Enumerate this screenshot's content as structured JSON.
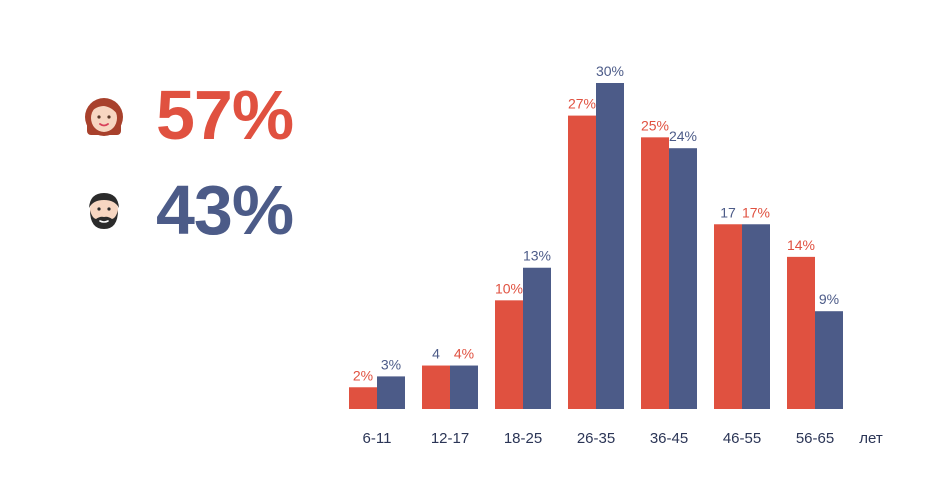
{
  "summary": {
    "female": {
      "percent": "57%",
      "icon": "woman-face-icon",
      "color": "#e05140"
    },
    "male": {
      "percent": "43%",
      "icon": "bearded-man-face-icon",
      "color": "#4c5b88"
    }
  },
  "chart_data": {
    "type": "bar",
    "title": "",
    "xlabel": "лет",
    "ylabel": "",
    "ylim": [
      0,
      30
    ],
    "grid": false,
    "categories": [
      "6-11",
      "12-17",
      "18-25",
      "26-35",
      "36-45",
      "46-55",
      "56-65"
    ],
    "series": [
      {
        "name": "female",
        "color": "#e05140",
        "values": [
          2,
          4,
          10,
          27,
          25,
          17,
          14
        ],
        "labels": [
          "2%",
          "4",
          "10%",
          "27%",
          "25%",
          "17",
          "14%"
        ],
        "label_colors": [
          "#e05140",
          "#4c5b88",
          "#e05140",
          "#e05140",
          "#e05140",
          "#4c5b88",
          "#e05140"
        ]
      },
      {
        "name": "male",
        "color": "#4c5b88",
        "values": [
          3,
          4,
          13,
          30,
          24,
          17,
          9
        ],
        "labels": [
          "3%",
          "4%",
          "13%",
          "30%",
          "24%",
          "17%",
          "9%"
        ],
        "label_colors": [
          "#4c5b88",
          "#e05140",
          "#4c5b88",
          "#4c5b88",
          "#4c5b88",
          "#e05140",
          "#4c5b88"
        ]
      }
    ]
  }
}
